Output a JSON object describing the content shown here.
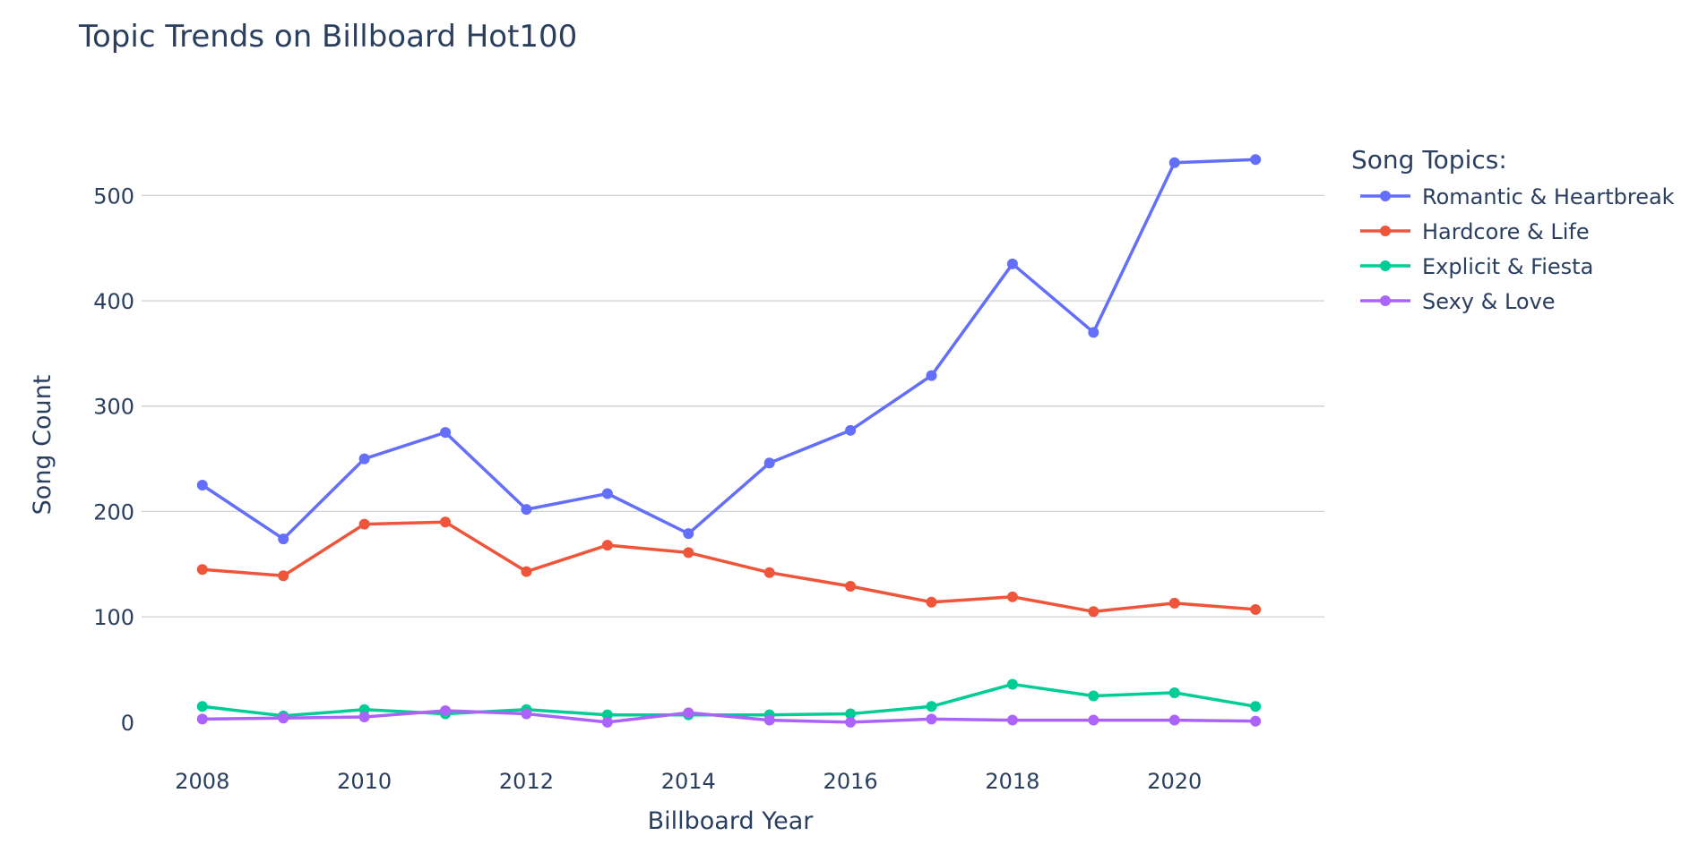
{
  "chart_data": {
    "type": "line",
    "title": "Topic Trends on Billboard Hot100",
    "xlabel": "Billboard Year",
    "ylabel": "Song Count",
    "x": [
      2008,
      2009,
      2010,
      2011,
      2012,
      2013,
      2014,
      2015,
      2016,
      2017,
      2018,
      2019,
      2020,
      2021
    ],
    "xlim": [
      2007.25,
      2021.85
    ],
    "ylim": [
      -40,
      575
    ],
    "x_ticks": [
      2008,
      2010,
      2012,
      2014,
      2016,
      2018,
      2020
    ],
    "y_ticks": [
      0,
      100,
      200,
      300,
      400,
      500
    ],
    "grid": "horizontal",
    "legend": {
      "title": "Song Topics:",
      "placement": "right"
    },
    "series": [
      {
        "name": "Romantic & Heartbreak",
        "color": "#636efa",
        "values": [
          225,
          174,
          250,
          275,
          202,
          217,
          179,
          246,
          277,
          329,
          435,
          370,
          531,
          534
        ]
      },
      {
        "name": "Hardcore & Life",
        "color": "#ef553b",
        "values": [
          145,
          139,
          188,
          190,
          143,
          168,
          161,
          142,
          129,
          114,
          119,
          105,
          113,
          107
        ]
      },
      {
        "name": "Explicit & Fiesta",
        "color": "#00cc96",
        "values": [
          15,
          6,
          12,
          8,
          12,
          7,
          7,
          7,
          8,
          15,
          36,
          25,
          28,
          15
        ]
      },
      {
        "name": "Sexy & Love",
        "color": "#ab63fa",
        "values": [
          3,
          4,
          5,
          11,
          8,
          0,
          9,
          2,
          0,
          3,
          2,
          2,
          2,
          1
        ]
      }
    ]
  }
}
